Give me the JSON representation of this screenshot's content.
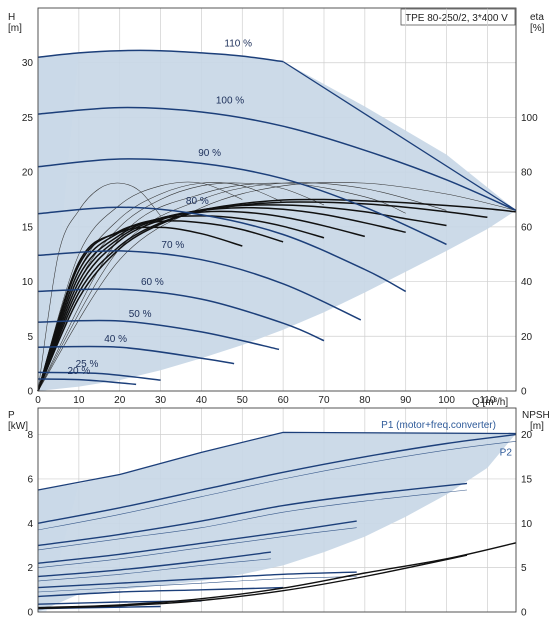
{
  "chart_data": [
    {
      "type": "line",
      "title": "TPE 80-250/2, 3*400 V",
      "xlabel": "Q [m³/h]",
      "ylabel": "H",
      "ylabel_unit": "[m]",
      "y2label": "eta",
      "y2label_unit": "[%]",
      "xlim": [
        0,
        117
      ],
      "ylim": [
        0,
        35
      ],
      "y2lim": [
        0,
        140
      ],
      "x_ticks": [
        0,
        10,
        20,
        30,
        40,
        50,
        60,
        70,
        80,
        90,
        100,
        110
      ],
      "y_ticks": [
        0,
        5,
        10,
        15,
        20,
        25,
        30
      ],
      "y2_ticks": [
        0,
        20,
        40,
        60,
        80,
        100
      ],
      "grid": true,
      "colors": {
        "curve": "#1c3f7a",
        "fill": "#c7d6e6",
        "fill_light": "#e6f0fa",
        "eff_bold": "#111111",
        "eff_thin": "#333333",
        "grid": "#cfcfcf"
      },
      "speed_curves": [
        {
          "label": "110 %",
          "x": [
            0,
            10,
            20,
            30,
            40,
            50,
            60
          ],
          "y": [
            30.5,
            30.9,
            31.1,
            31.1,
            30.9,
            30.6,
            30.1
          ],
          "label_x": 49,
          "label_y": 31.2
        },
        {
          "label": "100 %",
          "x": [
            0,
            20,
            40,
            60,
            80,
            100,
            117
          ],
          "y": [
            25.3,
            25.9,
            25.5,
            24.2,
            22.0,
            19.3,
            16.5
          ],
          "label_x": 47,
          "label_y": 26.0
        },
        {
          "label": "90 %",
          "x": [
            0,
            20,
            40,
            60,
            80,
            100
          ],
          "y": [
            20.5,
            21.2,
            20.8,
            19.4,
            16.8,
            13.4
          ],
          "label_x": 42,
          "label_y": 21.2
        },
        {
          "label": "80 %",
          "x": [
            0,
            20,
            40,
            60,
            80,
            90
          ],
          "y": [
            16.2,
            16.8,
            16.1,
            14.3,
            11.1,
            9.1
          ],
          "label_x": 39,
          "label_y": 16.8
        },
        {
          "label": "70 %",
          "x": [
            0,
            20,
            40,
            60,
            79
          ],
          "y": [
            12.4,
            12.8,
            12.0,
            9.8,
            6.5
          ],
          "label_x": 33,
          "label_y": 12.8
        },
        {
          "label": "60 %",
          "x": [
            0,
            20,
            40,
            60,
            70
          ],
          "y": [
            9.1,
            9.3,
            8.4,
            6.2,
            4.6
          ],
          "label_x": 28,
          "label_y": 9.4
        },
        {
          "label": "50 %",
          "x": [
            0,
            20,
            40,
            59
          ],
          "y": [
            6.3,
            6.4,
            5.4,
            3.8
          ],
          "label_x": 25,
          "label_y": 6.5
        },
        {
          "label": "40 %",
          "x": [
            0,
            20,
            40,
            48
          ],
          "y": [
            4.0,
            4.0,
            3.0,
            2.5
          ],
          "label_x": 19,
          "label_y": 4.2
        },
        {
          "label": "25 %",
          "x": [
            0,
            15,
            30
          ],
          "y": [
            1.7,
            1.6,
            1.0
          ],
          "label_x": 12,
          "label_y": 1.9
        },
        {
          "label": "20 %",
          "x": [
            0,
            12,
            24
          ],
          "y": [
            1.1,
            1.0,
            0.6
          ],
          "label_x": 10,
          "label_y": 1.3
        }
      ],
      "envelope": {
        "x": [
          0,
          10,
          20,
          30,
          40,
          50,
          60,
          80,
          100,
          117,
          110,
          100,
          90,
          80,
          70,
          60,
          50,
          40,
          30,
          20,
          10,
          0
        ],
        "y": [
          30.5,
          30.9,
          31.1,
          31.1,
          30.9,
          30.6,
          30.1,
          26.0,
          21.6,
          16.5,
          14.8,
          12.8,
          10.9,
          9.0,
          7.2,
          5.6,
          4.2,
          3.0,
          1.9,
          1.0,
          0.4,
          0
        ]
      },
      "efficiency_curves": [
        {
          "weight": "bold",
          "x": [
            0,
            10,
            20,
            30,
            40,
            50,
            60,
            70,
            80,
            90,
            100,
            110,
            117
          ],
          "y": [
            0,
            34,
            52,
            61,
            66,
            68.5,
            69.8,
            70,
            69.5,
            68.8,
            67.8,
            66.6,
            65.5
          ]
        },
        {
          "weight": "bold",
          "x": [
            0,
            10,
            20,
            30,
            40,
            50,
            60,
            70,
            80,
            90,
            100,
            110
          ],
          "y": [
            0,
            36,
            53,
            61.5,
            65.8,
            68,
            69,
            69,
            68.4,
            67.2,
            65.5,
            63.5
          ]
        },
        {
          "weight": "bold",
          "x": [
            0,
            10,
            20,
            30,
            40,
            50,
            60,
            70,
            80,
            90,
            100
          ],
          "y": [
            0,
            38,
            55,
            62.5,
            66.2,
            67.8,
            68,
            67.2,
            65.5,
            63.0,
            60.5
          ]
        },
        {
          "weight": "bold",
          "x": [
            0,
            10,
            20,
            30,
            40,
            50,
            60,
            70,
            80,
            90
          ],
          "y": [
            0,
            40,
            56,
            63,
            66,
            67,
            66.4,
            64.5,
            61.5,
            58
          ]
        },
        {
          "weight": "bold",
          "x": [
            0,
            10,
            20,
            30,
            40,
            50,
            60,
            70,
            80
          ],
          "y": [
            0,
            42,
            57,
            63.2,
            65.4,
            65.4,
            63.6,
            60.4,
            56.5
          ]
        },
        {
          "weight": "bold",
          "x": [
            0,
            10,
            20,
            30,
            40,
            50,
            60,
            70
          ],
          "y": [
            0,
            44,
            58,
            63,
            64,
            63,
            60.2,
            56
          ]
        },
        {
          "weight": "bold",
          "x": [
            0,
            10,
            20,
            30,
            40,
            50,
            60
          ],
          "y": [
            0,
            46,
            58.5,
            62,
            61.5,
            59,
            54.5
          ]
        },
        {
          "weight": "bold",
          "x": [
            0,
            10,
            20,
            30,
            40,
            50
          ],
          "y": [
            0,
            47,
            58,
            59.8,
            57.5,
            53
          ]
        },
        {
          "weight": "thin",
          "x": [
            0,
            5,
            10,
            15,
            20,
            25,
            30
          ],
          "y": [
            0,
            50,
            66,
            74,
            76,
            73,
            64
          ]
        },
        {
          "weight": "thin",
          "x": [
            0,
            10,
            20,
            30,
            40,
            50
          ],
          "y": [
            0,
            50,
            68,
            75,
            76,
            70
          ]
        },
        {
          "weight": "thin",
          "x": [
            0,
            10,
            20,
            30,
            40,
            50,
            60
          ],
          "y": [
            0,
            44,
            63,
            72,
            76,
            75,
            69
          ]
        },
        {
          "weight": "thin",
          "x": [
            0,
            10,
            20,
            30,
            40,
            50,
            60,
            70
          ],
          "y": [
            0,
            40,
            60,
            70,
            75,
            76,
            74,
            68
          ]
        },
        {
          "weight": "thin",
          "x": [
            0,
            20,
            40,
            60,
            80,
            90
          ],
          "y": [
            0,
            56,
            72,
            76,
            71,
            65
          ]
        },
        {
          "weight": "thin",
          "x": [
            0,
            20,
            40,
            60,
            80,
            100
          ],
          "y": [
            0,
            52,
            70,
            76,
            74,
            66
          ]
        },
        {
          "weight": "thin",
          "x": [
            0,
            20,
            40,
            60,
            80,
            100,
            117
          ],
          "y": [
            0,
            48,
            67,
            75,
            76,
            72,
            66
          ]
        }
      ]
    },
    {
      "type": "line",
      "xlabel": "",
      "ylabel": "P",
      "ylabel_unit": "[kW]",
      "y2label": "NPSH",
      "y2label_unit": "[m]",
      "xlim": [
        0,
        117
      ],
      "ylim": [
        0,
        9.2
      ],
      "y2lim": [
        0,
        23
      ],
      "y_ticks": [
        0,
        2,
        4,
        6,
        8
      ],
      "y2_ticks": [
        0,
        5,
        10,
        15,
        20
      ],
      "grid": true,
      "series_labels": {
        "p1": "P1 (motor+freq.converter)",
        "p2": "P2"
      },
      "p1_label_x": 84,
      "p1_label_y": 8.3,
      "p2_label_x": 113,
      "p2_label_y": 7.05,
      "envelope": {
        "x": [
          0,
          10,
          20,
          30,
          40,
          50,
          60,
          80,
          100,
          117,
          110,
          100,
          90,
          80,
          70,
          60,
          50,
          40,
          30,
          20,
          10,
          0
        ],
        "y": [
          5.5,
          5.8,
          6.2,
          6.7,
          7.2,
          7.65,
          8.1,
          8.1,
          8.1,
          8.05,
          6.5,
          5.3,
          4.3,
          3.4,
          2.7,
          2.1,
          1.7,
          1.4,
          1.2,
          1.0,
          0.8,
          0
        ]
      },
      "power_curves": [
        {
          "weight": "bold",
          "x": [
            0,
            20,
            40,
            60,
            80,
            100,
            117
          ],
          "y": [
            4.0,
            4.7,
            5.5,
            6.3,
            7.0,
            7.6,
            8.0
          ]
        },
        {
          "weight": "thin",
          "x": [
            0,
            20,
            40,
            60,
            80,
            100,
            117
          ],
          "y": [
            3.7,
            4.4,
            5.2,
            6.0,
            6.7,
            7.3,
            7.7
          ]
        },
        {
          "weight": "bold",
          "x": [
            0,
            20,
            40,
            60,
            80,
            105
          ],
          "y": [
            3.0,
            3.5,
            4.1,
            4.8,
            5.3,
            5.8
          ]
        },
        {
          "weight": "thin",
          "x": [
            0,
            20,
            40,
            60,
            80,
            105
          ],
          "y": [
            2.8,
            3.3,
            3.8,
            4.5,
            5.0,
            5.5
          ]
        },
        {
          "weight": "bold",
          "x": [
            0,
            20,
            40,
            60,
            78
          ],
          "y": [
            2.2,
            2.6,
            3.1,
            3.6,
            4.1
          ]
        },
        {
          "weight": "thin",
          "x": [
            0,
            20,
            40,
            60,
            78
          ],
          "y": [
            2.0,
            2.4,
            2.9,
            3.4,
            3.8
          ]
        },
        {
          "weight": "bold",
          "x": [
            0,
            20,
            40,
            57
          ],
          "y": [
            1.6,
            1.9,
            2.3,
            2.7
          ]
        },
        {
          "weight": "thin",
          "x": [
            0,
            20,
            40,
            57
          ],
          "y": [
            1.4,
            1.7,
            2.1,
            2.4
          ]
        },
        {
          "weight": "bold",
          "x": [
            0,
            20,
            40,
            60,
            78
          ],
          "y": [
            1.1,
            1.3,
            1.5,
            1.7,
            1.8
          ]
        },
        {
          "weight": "thin",
          "x": [
            0,
            20,
            40,
            60,
            78
          ],
          "y": [
            0.9,
            1.1,
            1.3,
            1.5,
            1.6
          ]
        },
        {
          "weight": "bold",
          "x": [
            0,
            20,
            40,
            60
          ],
          "y": [
            0.7,
            0.9,
            1.0,
            1.1
          ]
        },
        {
          "weight": "bold",
          "x": [
            0,
            20,
            40
          ],
          "y": [
            0.35,
            0.45,
            0.5
          ]
        },
        {
          "weight": "bold",
          "x": [
            0,
            15,
            30
          ],
          "y": [
            0.15,
            0.2,
            0.25
          ]
        }
      ],
      "npsh_curves": [
        {
          "weight": "bold",
          "x": [
            0,
            20,
            40,
            60,
            80,
            100,
            117
          ],
          "y": [
            0.5,
            0.8,
            1.5,
            2.7,
            4.4,
            6.0,
            7.8
          ]
        },
        {
          "weight": "bold",
          "x": [
            0,
            20,
            40,
            60,
            80,
            105
          ],
          "y": [
            0.4,
            0.7,
            1.3,
            2.4,
            4.0,
            6.4
          ]
        }
      ]
    }
  ]
}
